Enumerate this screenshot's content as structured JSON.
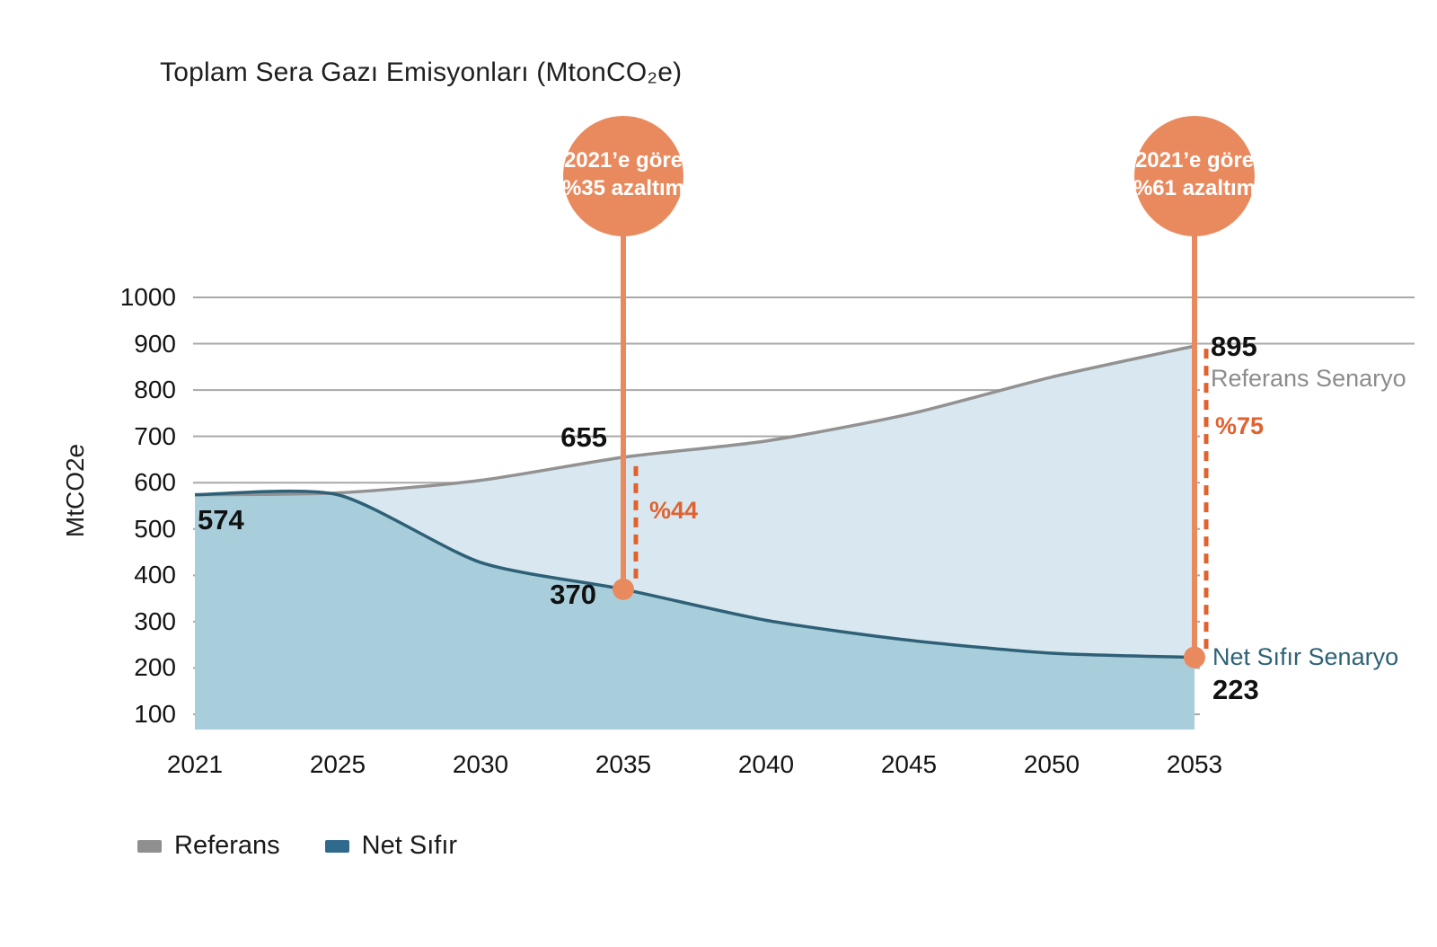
{
  "title": "Toplam Sera Gazı Emisyonları (MtonCO₂e)",
  "y_axis": {
    "label": "MtCO2e",
    "ticks": [
      "1000",
      "900",
      "800",
      "700",
      "600",
      "500",
      "400",
      "300",
      "200",
      "100"
    ]
  },
  "x_axis": {
    "ticks": [
      "2021",
      "2025",
      "2030",
      "2035",
      "2040",
      "2045",
      "2050",
      "2053"
    ]
  },
  "legend": {
    "items": [
      {
        "label": "Referans",
        "color": "#8F8F8F"
      },
      {
        "label": "Net Sıfır",
        "color": "#2F6A8C"
      }
    ]
  },
  "annotations": {
    "start_label": "574",
    "callout_2035": {
      "line1": "2021’e göre",
      "line2": "%35 azaltım",
      "pct": "%44",
      "ref_label": "655",
      "net_label": "370"
    },
    "callout_2053": {
      "line1": "2021’e göre",
      "line2": "%61 azaltım",
      "pct": "%75",
      "ref_label": "895",
      "net_label": "223",
      "ref_series": "Referans Senaryo",
      "net_series": "Net Sıfır Senaryo"
    }
  },
  "colors": {
    "salmon": "#E98A5E",
    "orange": "#E0622F",
    "referans_line": "#929292",
    "netzero_line": "#2E6077",
    "fill_between": "#D9E8F0",
    "fill_below": "#A9CEDB",
    "grid": "#A8A8A8",
    "text_dark": "#1A1A1A",
    "text_gray": "#8C8C8C",
    "text_blue": "#2E6276"
  },
  "chart_data": {
    "type": "area",
    "title": "Toplam Sera Gazı Emisyonları (MtonCO₂e)",
    "ylabel": "MtCO2e",
    "ylim": [
      100,
      1000
    ],
    "grid": true,
    "legend_position": "bottom",
    "categories": [
      "2021",
      "2025",
      "2030",
      "2035",
      "2040",
      "2045",
      "2050",
      "2053"
    ],
    "series": [
      {
        "name": "Referans",
        "values": [
          574,
          578,
          605,
          655,
          690,
          748,
          828,
          895
        ]
      },
      {
        "name": "Net Sıfır",
        "values": [
          574,
          574,
          428,
          370,
          303,
          260,
          232,
          223
        ]
      }
    ],
    "labeled_points": {
      "2021_both": 574,
      "2035_referans": 655,
      "2035_net_sifir": 370,
      "2053_referans": 895,
      "2053_net_sifir": 223
    },
    "reduction_vs_2021": {
      "2035": "%35 azaltım",
      "2053": "%61 azaltım"
    },
    "reduction_vs_referans": {
      "2035": "%44",
      "2053": "%75"
    }
  }
}
